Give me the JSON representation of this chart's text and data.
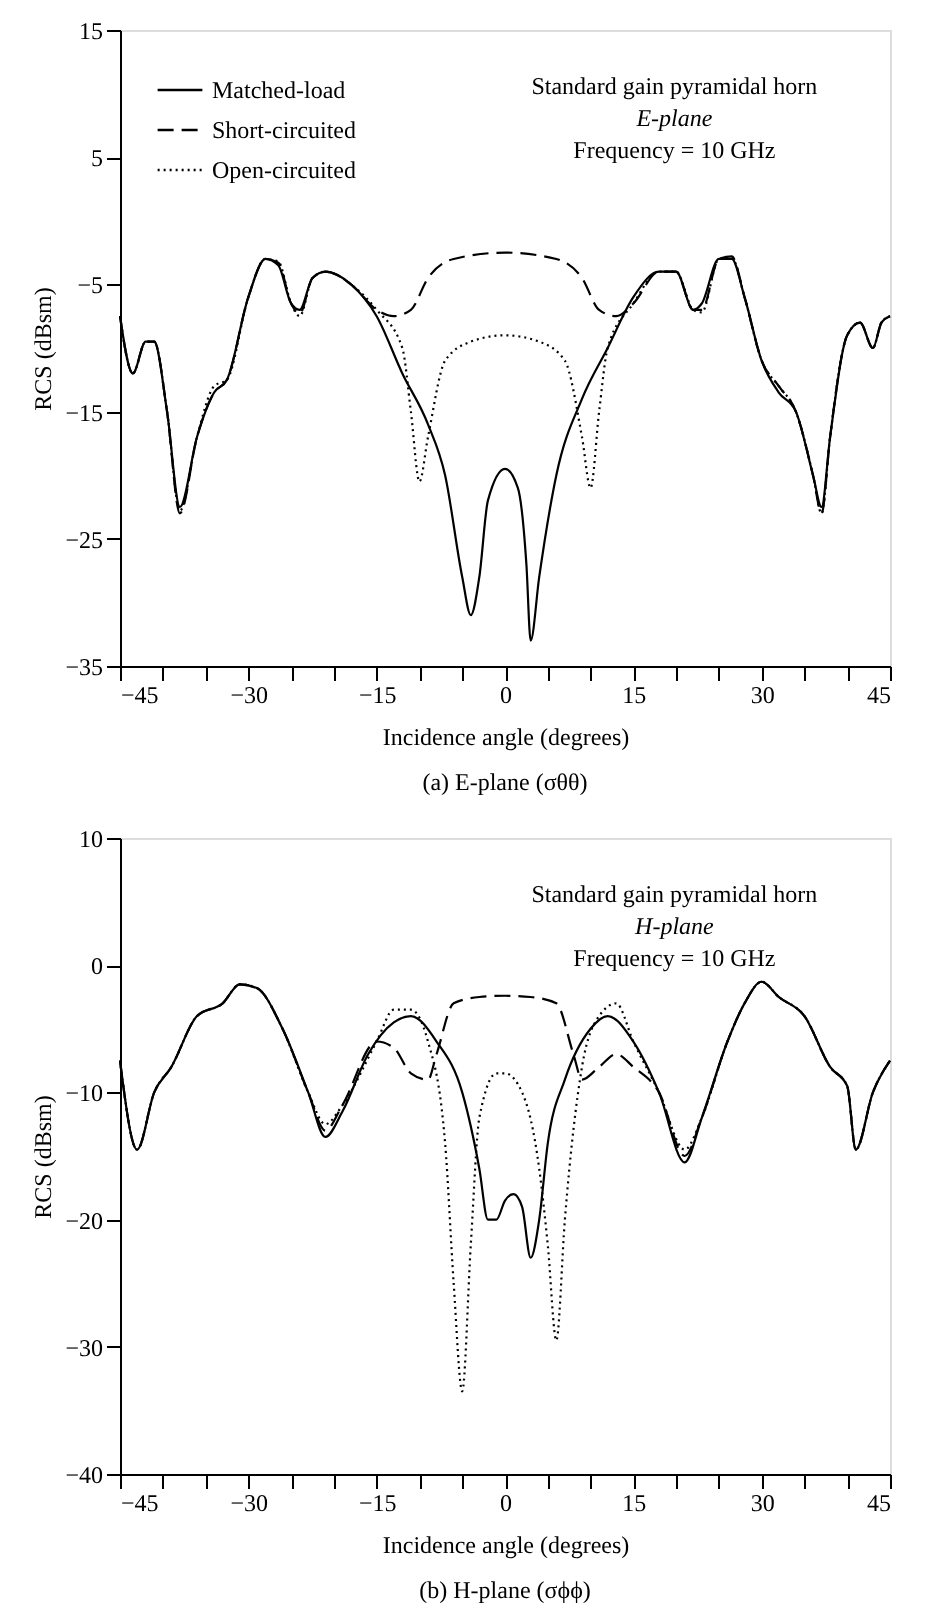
{
  "chart_data": [
    {
      "type": "line",
      "title": "(a) E-plane (σθθ)",
      "xlabel": "Incidence angle (degrees)",
      "ylabel": "RCS (dBsm)",
      "xlim": [
        -45,
        45
      ],
      "ylim": [
        -35,
        15
      ],
      "xticks": [
        -45,
        {
          "value": -40,
          "label": null
        },
        {
          "value": -35,
          "label": null
        },
        -30,
        {
          "value": -25,
          "label": null
        },
        {
          "value": -20,
          "label": null
        },
        -15,
        {
          "value": -10,
          "label": null
        },
        {
          "value": -5,
          "label": null
        },
        0,
        {
          "value": 5,
          "label": null
        },
        {
          "value": 10,
          "label": null
        },
        15,
        {
          "value": 20,
          "label": null
        },
        {
          "value": 25,
          "label": null
        },
        30,
        {
          "value": 35,
          "label": null
        },
        {
          "value": 40,
          "label": null
        },
        45
      ],
      "yticks": [
        -35,
        -25,
        -15,
        -5,
        5,
        15
      ],
      "grid": false,
      "legend": "top left",
      "annotations": [
        "Standard gain pyramidal horn",
        "E-plane",
        "Frequency = 10 GHz"
      ],
      "series": [
        {
          "name": "Matched-load",
          "color": "#000000",
          "line_style": "solid",
          "x": [
            -45,
            -43.5,
            -42,
            -41,
            -39.5,
            -38,
            -36,
            -34,
            -32.5,
            -30,
            -28,
            -26.5,
            -25,
            -24,
            -22.5,
            -21,
            -18,
            -15,
            -12,
            -9,
            -7,
            -5,
            -4,
            -3,
            -2,
            0,
            1.5,
            2.5,
            3,
            4,
            6,
            9,
            12,
            15,
            18,
            20,
            22,
            23,
            25,
            26.5,
            28,
            30,
            32,
            34,
            36,
            37,
            38,
            40,
            41.5,
            43,
            44,
            45
          ],
          "values": [
            -7.5,
            -12,
            -9.5,
            -9.5,
            -15,
            -22.5,
            -17,
            -13.5,
            -12.5,
            -6,
            -3,
            -3.5,
            -6.5,
            -7,
            -4.5,
            -4,
            -5,
            -7.5,
            -12,
            -16,
            -20,
            -28,
            -31,
            -28,
            -22,
            -19.5,
            -21,
            -27,
            -33,
            -28,
            -20,
            -14,
            -10,
            -6,
            -4,
            -4,
            -7,
            -6.5,
            -3,
            -3,
            -6,
            -11,
            -13.5,
            -15,
            -20,
            -22.5,
            -17,
            -9,
            -8,
            -10,
            -8,
            -7.5
          ]
        },
        {
          "name": "Short-circuited",
          "color": "#000000",
          "line_style": "dashed",
          "x": [
            -45,
            -43.5,
            -42,
            -41,
            -39.5,
            -38,
            -36,
            -34,
            -32.5,
            -30,
            -28,
            -26.5,
            -25,
            -24,
            -22.5,
            -21,
            -18,
            -15,
            -13,
            -11,
            -9,
            -6,
            0,
            6,
            9,
            11,
            13,
            15,
            18,
            20,
            22,
            23,
            25,
            26.5,
            28,
            30,
            32,
            34,
            36,
            37,
            38,
            40,
            41.5,
            43,
            44,
            45
          ],
          "values": [
            -7.5,
            -12,
            -9.5,
            -9.5,
            -15,
            -23,
            -17,
            -13.5,
            -12.5,
            -6,
            -3,
            -3.3,
            -6.5,
            -7.3,
            -4.5,
            -4,
            -5,
            -7,
            -7.5,
            -7,
            -4.5,
            -3,
            -2.5,
            -3,
            -4.5,
            -7,
            -7.5,
            -6.5,
            -4,
            -4,
            -7,
            -7,
            -3,
            -2.8,
            -6,
            -11,
            -13,
            -15,
            -20,
            -23,
            -17,
            -9,
            -8,
            -10,
            -8,
            -7.5
          ]
        },
        {
          "name": "Open-circuited",
          "color": "#000000",
          "line_style": "dotted",
          "x": [
            -45,
            -43.5,
            -42,
            -41,
            -39.5,
            -38,
            -36,
            -34,
            -32.5,
            -30,
            -28,
            -26.5,
            -25,
            -24,
            -22.5,
            -21,
            -18,
            -15,
            -12,
            -11,
            -10,
            -9,
            -7,
            -4,
            0,
            4,
            7,
            9,
            10,
            11,
            12,
            15,
            18,
            20,
            22,
            23,
            25,
            26.5,
            28,
            30,
            32,
            34,
            36,
            37,
            38,
            40,
            41.5,
            43,
            44,
            45
          ],
          "values": [
            -7.5,
            -12,
            -9.5,
            -9.5,
            -15,
            -22.8,
            -17,
            -13,
            -12.5,
            -6,
            -3,
            -3.2,
            -6.5,
            -7.5,
            -4.5,
            -4,
            -5,
            -7,
            -10,
            -15,
            -20.5,
            -17,
            -11,
            -9.5,
            -9,
            -9.5,
            -11,
            -17,
            -21,
            -15,
            -10,
            -6.5,
            -4,
            -4,
            -7,
            -7.2,
            -3,
            -2.9,
            -6,
            -11,
            -13,
            -15,
            -20,
            -23,
            -17,
            -9,
            -8,
            -10,
            -8,
            -7.5
          ]
        }
      ]
    },
    {
      "type": "line",
      "title": "(b) H-plane (σϕϕ)",
      "xlabel": "Incidence angle (degrees)",
      "ylabel": "RCS (dBsm)",
      "xlim": [
        -45,
        45
      ],
      "ylim": [
        -40,
        10
      ],
      "xticks": [
        -45,
        {
          "value": -40,
          "label": null
        },
        {
          "value": -35,
          "label": null
        },
        -30,
        {
          "value": -25,
          "label": null
        },
        {
          "value": -20,
          "label": null
        },
        -15,
        {
          "value": -10,
          "label": null
        },
        {
          "value": -5,
          "label": null
        },
        0,
        {
          "value": 5,
          "label": null
        },
        {
          "value": 10,
          "label": null
        },
        15,
        {
          "value": 20,
          "label": null
        },
        {
          "value": 25,
          "label": null
        },
        30,
        {
          "value": 35,
          "label": null
        },
        {
          "value": 40,
          "label": null
        },
        45
      ],
      "yticks": [
        -40,
        -30,
        -20,
        -10,
        0,
        10
      ],
      "grid": false,
      "legend": "top left",
      "annotations": [
        "Standard gain pyramidal horn",
        "H-plane",
        "Frequency = 10 GHz"
      ],
      "series": [
        {
          "name": "Matched-load",
          "color": "#000000",
          "line_style": "solid",
          "x": [
            -45,
            -43,
            -41,
            -39,
            -36,
            -33,
            -31,
            -29,
            -26,
            -23,
            -21,
            -19,
            -16,
            -13,
            -11,
            -8,
            -5,
            -3,
            -2,
            -1,
            0,
            1,
            2,
            3,
            4,
            5,
            7,
            10,
            12,
            15,
            18,
            21,
            23,
            26,
            28,
            30,
            32,
            35,
            38,
            40,
            41,
            43,
            45
          ],
          "values": [
            -7.5,
            -14.5,
            -10,
            -8,
            -4,
            -3,
            -1.5,
            -1.8,
            -5,
            -10,
            -13.5,
            -11.5,
            -7,
            -4.5,
            -4,
            -6,
            -10,
            -16,
            -20,
            -20,
            -18.5,
            -18,
            -19,
            -23,
            -20,
            -14,
            -9,
            -5,
            -4,
            -6,
            -10,
            -15.5,
            -12,
            -6,
            -3,
            -1.3,
            -2.5,
            -4,
            -8,
            -9.5,
            -14.5,
            -10,
            -7.5
          ]
        },
        {
          "name": "Short-circuited",
          "color": "#000000",
          "line_style": "dashed",
          "x": [
            -45,
            -43,
            -41,
            -39,
            -36,
            -33,
            -31,
            -29,
            -26,
            -23,
            -21,
            -19,
            -15,
            -13,
            -11,
            -9,
            -8,
            -6,
            -3,
            0,
            3,
            6,
            8,
            9,
            11,
            13,
            15,
            18,
            21,
            23,
            26,
            28,
            30,
            32,
            35,
            38,
            40,
            41,
            43,
            45
          ],
          "values": [
            -7.5,
            -14.5,
            -10,
            -8,
            -4,
            -3,
            -1.5,
            -1.8,
            -5,
            -10,
            -13,
            -11,
            -6,
            -6.5,
            -8.5,
            -9,
            -7,
            -3,
            -2.5,
            -2.4,
            -2.5,
            -3,
            -7,
            -9,
            -8,
            -7,
            -8,
            -10,
            -15,
            -12,
            -6,
            -3,
            -1.3,
            -2.5,
            -4,
            -8,
            -9.5,
            -14.5,
            -10,
            -7.5
          ]
        },
        {
          "name": "Open-circuited",
          "color": "#000000",
          "line_style": "dotted",
          "x": [
            -45,
            -43,
            -41,
            -39,
            -36,
            -33,
            -31,
            -29,
            -26,
            -23,
            -21,
            -19,
            -15,
            -13,
            -11,
            -9,
            -7,
            -6,
            -5,
            -4,
            -3,
            -1,
            0,
            2,
            4,
            5,
            6,
            7,
            9,
            11,
            13,
            15,
            18,
            21,
            23,
            26,
            28,
            30,
            32,
            35,
            38,
            40,
            41,
            43,
            45
          ],
          "values": [
            -7.5,
            -14.5,
            -10,
            -8,
            -4,
            -3,
            -1.5,
            -1.8,
            -5,
            -10,
            -12.5,
            -11,
            -6,
            -3.5,
            -3.5,
            -6,
            -14,
            -25,
            -33.5,
            -22,
            -12,
            -8.5,
            -8.5,
            -10,
            -16,
            -22,
            -29.5,
            -20,
            -8,
            -4,
            -3,
            -6,
            -10,
            -14.5,
            -12,
            -6,
            -3,
            -1.3,
            -2.5,
            -4,
            -8,
            -9.5,
            -14.5,
            -10,
            -7.5
          ]
        }
      ]
    }
  ]
}
